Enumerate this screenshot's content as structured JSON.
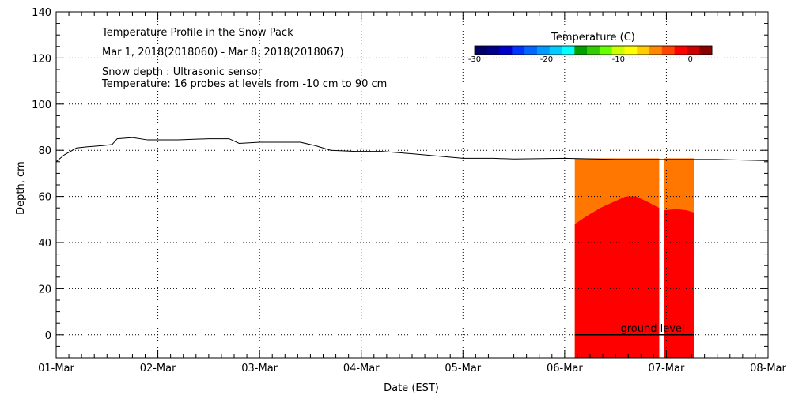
{
  "chart_data": {
    "type": "area",
    "title": "Temperature Profile in the Snow Pack",
    "subtitle": "Mar  1, 2018(2018060) - Mar  8, 2018(2018067)",
    "notes": [
      "Snow depth : Ultrasonic sensor",
      "Temperature: 16 probes at levels from -10 cm to 90 cm"
    ],
    "xlabel": "Date (EST)",
    "ylabel": "Depth, cm",
    "x_ticks": [
      "01-Mar",
      "02-Mar",
      "03-Mar",
      "04-Mar",
      "05-Mar",
      "06-Mar",
      "07-Mar",
      "08-Mar"
    ],
    "xlim": [
      0,
      7
    ],
    "ylim": [
      -10,
      140
    ],
    "y_ticks": [
      0,
      20,
      40,
      60,
      80,
      100,
      120,
      140
    ],
    "grid": true,
    "annotation": "ground level",
    "colorbar": {
      "title": "Temperature (C)",
      "range": [
        -30,
        3
      ],
      "tick_labels": [
        "-30",
        "-20",
        "-10",
        "0"
      ],
      "tick_values": [
        -30,
        -20,
        -10,
        0
      ],
      "colors": [
        "#000066",
        "#00008b",
        "#0000cd",
        "#0033ff",
        "#0066ff",
        "#0099ff",
        "#00ccff",
        "#00ffff",
        "#00a000",
        "#33cc00",
        "#66ff00",
        "#ccff00",
        "#ffff00",
        "#ffcc00",
        "#ff8800",
        "#ff4400",
        "#ff0000",
        "#cc0000",
        "#880000"
      ]
    },
    "series": [
      {
        "name": "Snow depth",
        "x": [
          0,
          0.08,
          0.2,
          0.3,
          0.45,
          0.55,
          0.6,
          0.75,
          0.9,
          1.2,
          1.5,
          1.7,
          1.8,
          2.0,
          2.4,
          2.55,
          2.7,
          2.95,
          3.2,
          3.5,
          4.0,
          4.3,
          4.5,
          5.0,
          5.5,
          6.0,
          6.5,
          7.0
        ],
        "y": [
          75,
          78,
          81,
          81.5,
          82,
          82.5,
          85,
          85.5,
          84.5,
          84.5,
          85,
          85,
          83,
          83.5,
          83.5,
          82,
          80,
          79.5,
          79.5,
          78.5,
          76.5,
          76.5,
          76.2,
          76.5,
          76,
          76,
          76,
          75.5
        ]
      }
    ],
    "temperature_blocks": [
      {
        "x": [
          5.1,
          5.93
        ],
        "top": 76.5,
        "upper_color": "#ff7700",
        "lower_color": "#ff0000",
        "boundary_x": [
          5.1,
          5.2,
          5.35,
          5.5,
          5.6,
          5.7,
          5.8,
          5.93
        ],
        "boundary_y": [
          48,
          51,
          55,
          58,
          60,
          60,
          58,
          55
        ]
      },
      {
        "x": [
          5.98,
          6.27
        ],
        "top": 76.5,
        "upper_color": "#ff7700",
        "lower_color": "#ff0000",
        "boundary_x": [
          5.98,
          6.1,
          6.2,
          6.27
        ],
        "boundary_y": [
          54,
          54.5,
          54,
          53
        ]
      }
    ],
    "ground_line": {
      "x": [
        5.1,
        6.27
      ],
      "y": 0
    }
  }
}
